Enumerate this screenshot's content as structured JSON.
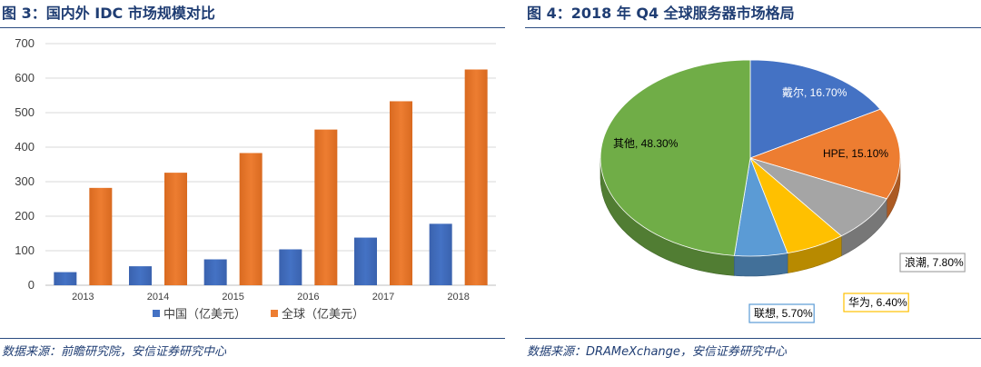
{
  "left": {
    "figure_title": "图 3：国内外 IDC 市场规模对比",
    "source": "数据来源：前瞻研究院，安信证券研究中心",
    "colors": {
      "china": "#4472c4",
      "global": "#ed7d31",
      "grid": "#d9d9d9",
      "axis_text": "#404040"
    }
  },
  "right": {
    "figure_title": "图 4：2018 年 Q4 全球服务器市场格局",
    "source": "数据来源：DRAMeXchange，安信证券研究中心",
    "colors": {
      "dell": "#4472c4",
      "hpe": "#ed7d31",
      "inspur": "#a5a5a5",
      "huawei": "#ffc000",
      "lenovo": "#5b9bd5",
      "other": "#70ad47"
    }
  },
  "chart_data": [
    {
      "type": "bar",
      "title": "",
      "xlabel": "",
      "ylabel": "",
      "categories": [
        "2013",
        "2014",
        "2015",
        "2016",
        "2017",
        "2018"
      ],
      "series": [
        {
          "name": "中国（亿美元）",
          "values": [
            38,
            55,
            75,
            104,
            138,
            178
          ]
        },
        {
          "name": "全球（亿美元）",
          "values": [
            282,
            326,
            383,
            451,
            533,
            625
          ]
        }
      ],
      "ylim": [
        0,
        700
      ],
      "yticks": [
        0,
        100,
        200,
        300,
        400,
        500,
        600,
        700
      ],
      "grid": true,
      "legend": "bottom"
    },
    {
      "type": "pie",
      "title": "",
      "slices": [
        {
          "label": "戴尔",
          "value": 16.7,
          "label_text": "戴尔, 16.70%"
        },
        {
          "label": "HPE",
          "value": 15.1,
          "label_text": "HPE, 15.10%"
        },
        {
          "label": "浪潮",
          "value": 7.8,
          "label_text": "浪潮, 7.80%"
        },
        {
          "label": "华为",
          "value": 6.4,
          "label_text": "华为, 6.40%"
        },
        {
          "label": "联想",
          "value": 5.7,
          "label_text": "联想, 5.70%"
        },
        {
          "label": "其他",
          "value": 48.3,
          "label_text": "其他, 48.30%"
        }
      ],
      "style": "3d",
      "legend": "none"
    }
  ]
}
